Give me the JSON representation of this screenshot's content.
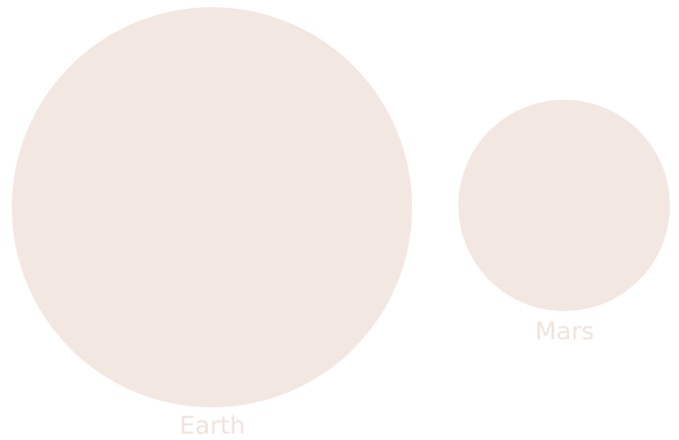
{
  "diagram": {
    "planets": [
      {
        "name": "Earth"
      },
      {
        "name": "Mars"
      }
    ]
  },
  "colors": {
    "planet_fill": "#f3e7e1",
    "label": "#efe4dd"
  }
}
